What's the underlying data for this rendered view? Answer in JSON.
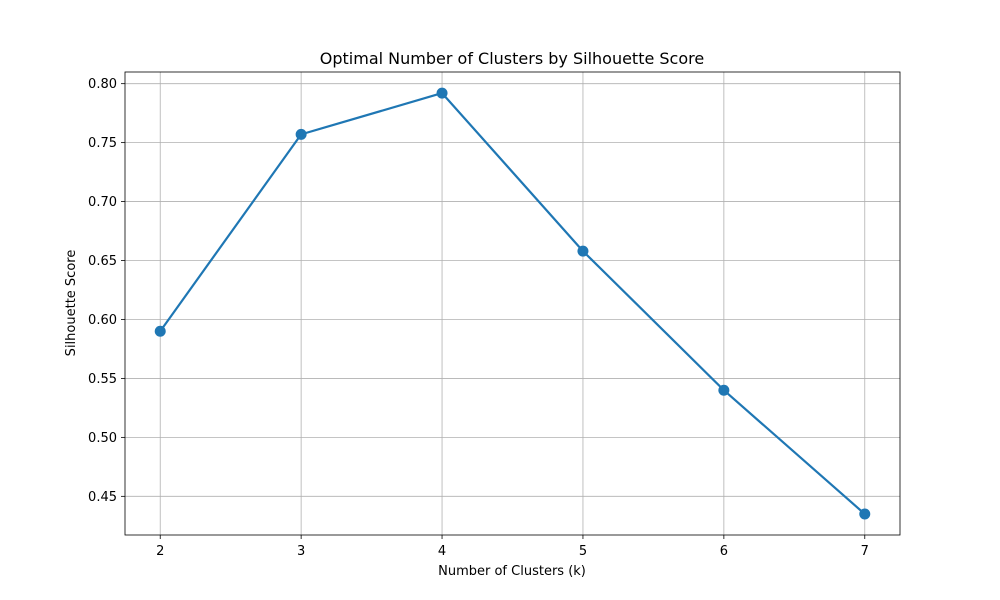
{
  "chart_data": {
    "type": "line",
    "title": "Optimal Number of Clusters by Silhouette Score",
    "xlabel": "Number of Clusters (k)",
    "ylabel": "Silhouette Score",
    "x": [
      2,
      3,
      4,
      5,
      6,
      7
    ],
    "series": [
      {
        "values": [
          0.59,
          0.757,
          0.792,
          0.658,
          0.54,
          0.435
        ],
        "color": "#1f77b4",
        "marker": "circle"
      }
    ],
    "xticks": [
      "2",
      "3",
      "4",
      "5",
      "6",
      "7"
    ],
    "yticks": [
      "0.45",
      "0.50",
      "0.55",
      "0.60",
      "0.65",
      "0.70",
      "0.75",
      "0.80"
    ],
    "xlim": [
      1.75,
      7.25
    ],
    "ylim": [
      0.4172,
      0.8099
    ],
    "grid": true,
    "legend": "none"
  }
}
